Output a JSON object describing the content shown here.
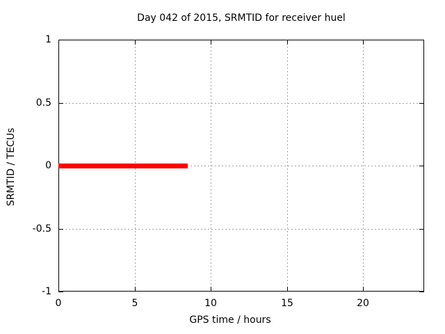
{
  "chart_data": {
    "type": "line",
    "title": "Day 042 of 2015, SRMTID for receiver huel",
    "xlabel": "GPS time / hours",
    "ylabel": "SRMTID / TECUs",
    "xlim": [
      0,
      24
    ],
    "ylim": [
      -1,
      1
    ],
    "x_ticks": [
      0,
      5,
      10,
      15,
      20
    ],
    "x_tick_labels": [
      "0",
      "5",
      "10",
      "15",
      "20"
    ],
    "y_ticks": [
      -1,
      -0.5,
      0,
      0.5,
      1
    ],
    "y_tick_labels": [
      "-1",
      "-0.5",
      "0",
      "0.5",
      "1"
    ],
    "grid": true,
    "grid_style": "dotted",
    "legend_position": "none",
    "series": [
      {
        "name": "SRMTID",
        "color": "#ff0000",
        "x": [
          0,
          8.5
        ],
        "y": [
          0,
          0
        ],
        "style": "thick-line"
      }
    ],
    "colors": {
      "line": "#ff0000",
      "grid": "#a0a0a0",
      "axis": "#000000",
      "background": "#ffffff",
      "text": "#000000"
    }
  }
}
